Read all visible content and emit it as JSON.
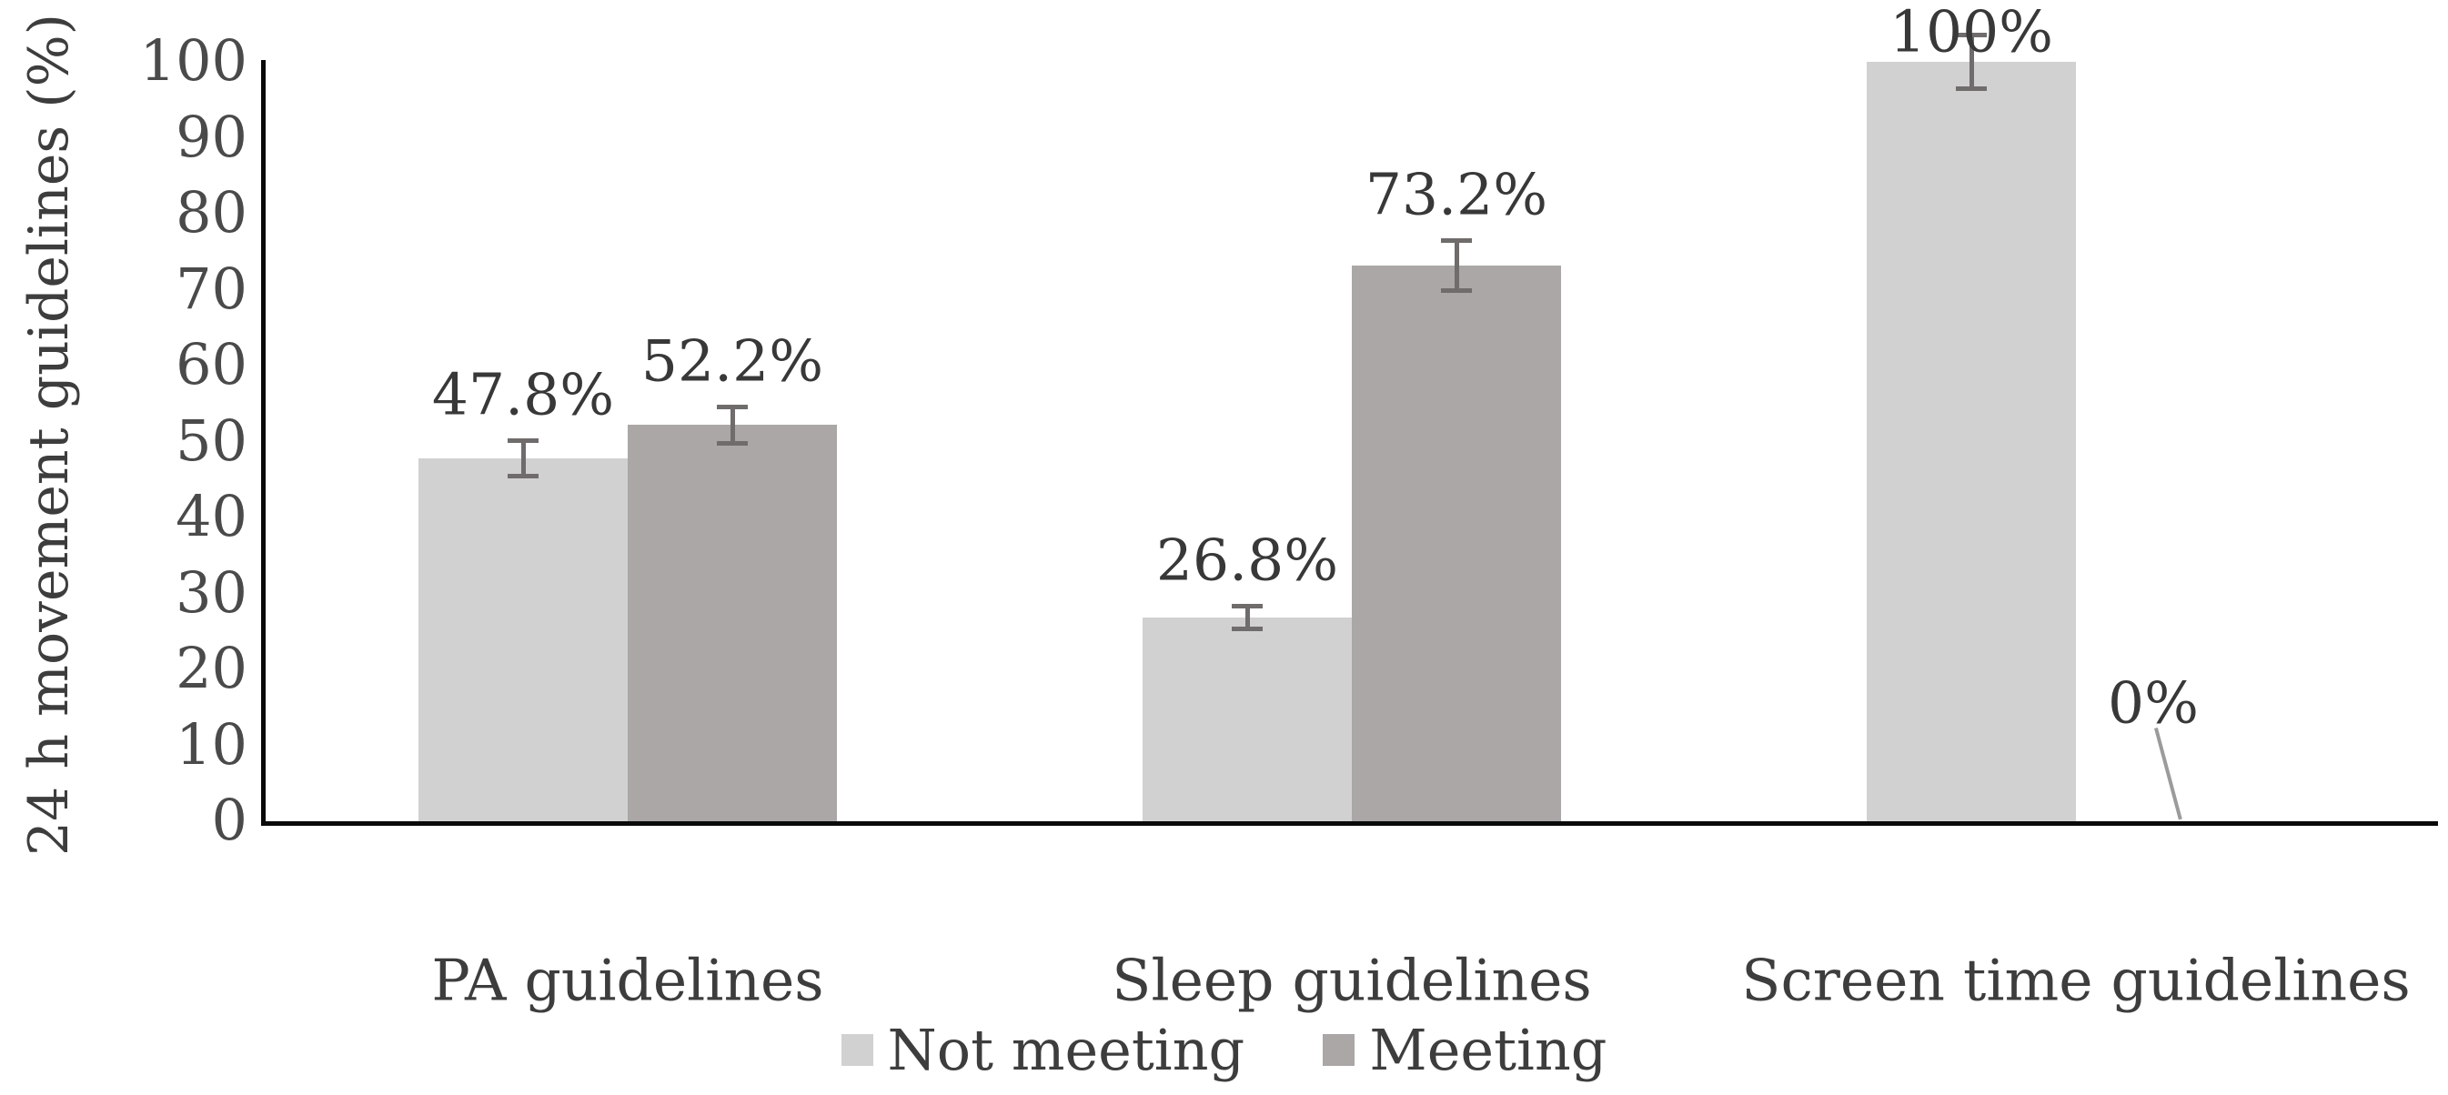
{
  "figure": {
    "y_axis_title": "24 h movement guidelines (%)"
  },
  "chart_data": {
    "type": "bar",
    "title": "",
    "xlabel": "",
    "ylabel": "24 h movement guidelines (%)",
    "categories": [
      "PA guidelines",
      "Sleep guidelines",
      "Screen time guidelines"
    ],
    "series": [
      {
        "name": "Not meeting",
        "color": "#d2d1d1",
        "values": [
          47.8,
          26.8,
          100
        ],
        "errors": [
          2.6,
          1.8,
          3.8
        ],
        "data_labels": [
          "47.8%",
          "26.8%",
          "100%"
        ]
      },
      {
        "name": "Meeting",
        "color": "#aba7a6",
        "values": [
          52.2,
          73.2,
          0
        ],
        "errors": [
          2.7,
          3.6,
          null
        ],
        "data_labels": [
          "52.2%",
          "73.2%",
          "0%"
        ]
      }
    ],
    "ylim": [
      0,
      100
    ],
    "ytick_labels": [
      "0",
      "10",
      "20",
      "30",
      "40",
      "50",
      "60",
      "70",
      "80",
      "90",
      "100"
    ],
    "grid": false,
    "error_bars": true,
    "legend_position": "bottom",
    "legend": [
      {
        "label": "Not meeting",
        "color": "#d2d1d1"
      },
      {
        "label": "Meeting",
        "color": "#aba7a6"
      }
    ],
    "annotations": {
      "zero_value_leader_line": true
    },
    "colors": {
      "axis": "#0a0a0a",
      "error_bar": "#6f6c6b",
      "text": "#3d3d3d",
      "leader_line": "#9c9a9a"
    }
  }
}
